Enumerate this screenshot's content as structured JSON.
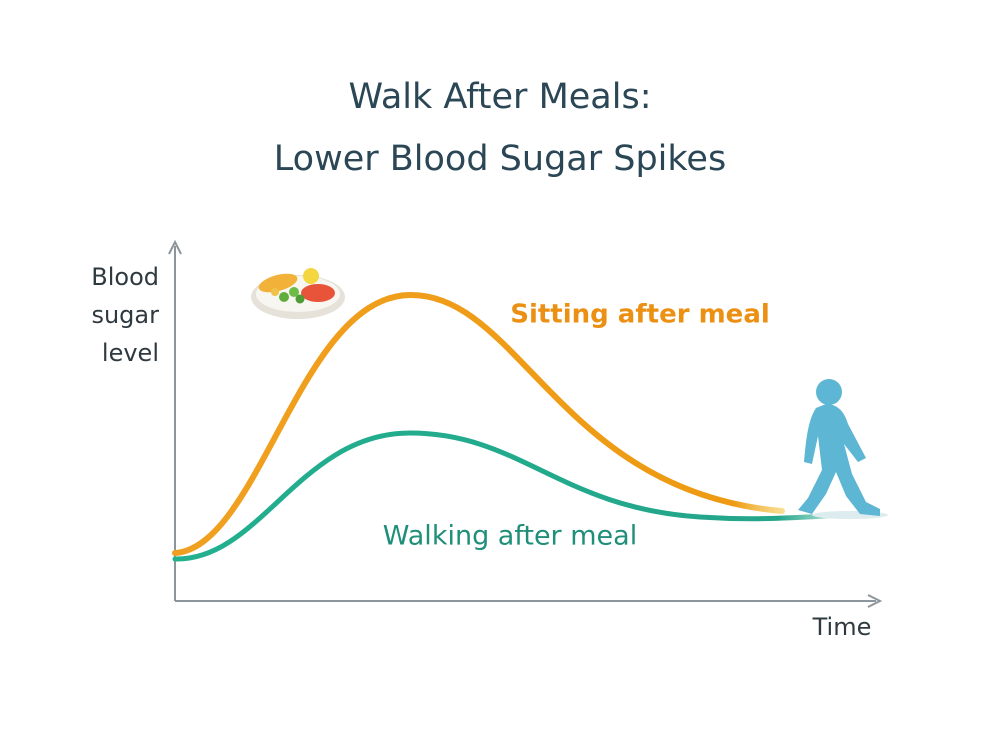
{
  "header": {
    "title_lines": [
      "Walk After Meals:",
      "Lower Blood Sugar Spikes"
    ]
  },
  "axes": {
    "y_label_lines": [
      "Blood",
      "sugar",
      "level"
    ],
    "x_label": "Time"
  },
  "curves": [
    {
      "label": "Sitting after meal"
    },
    {
      "label": "Walking after meal"
    }
  ]
}
